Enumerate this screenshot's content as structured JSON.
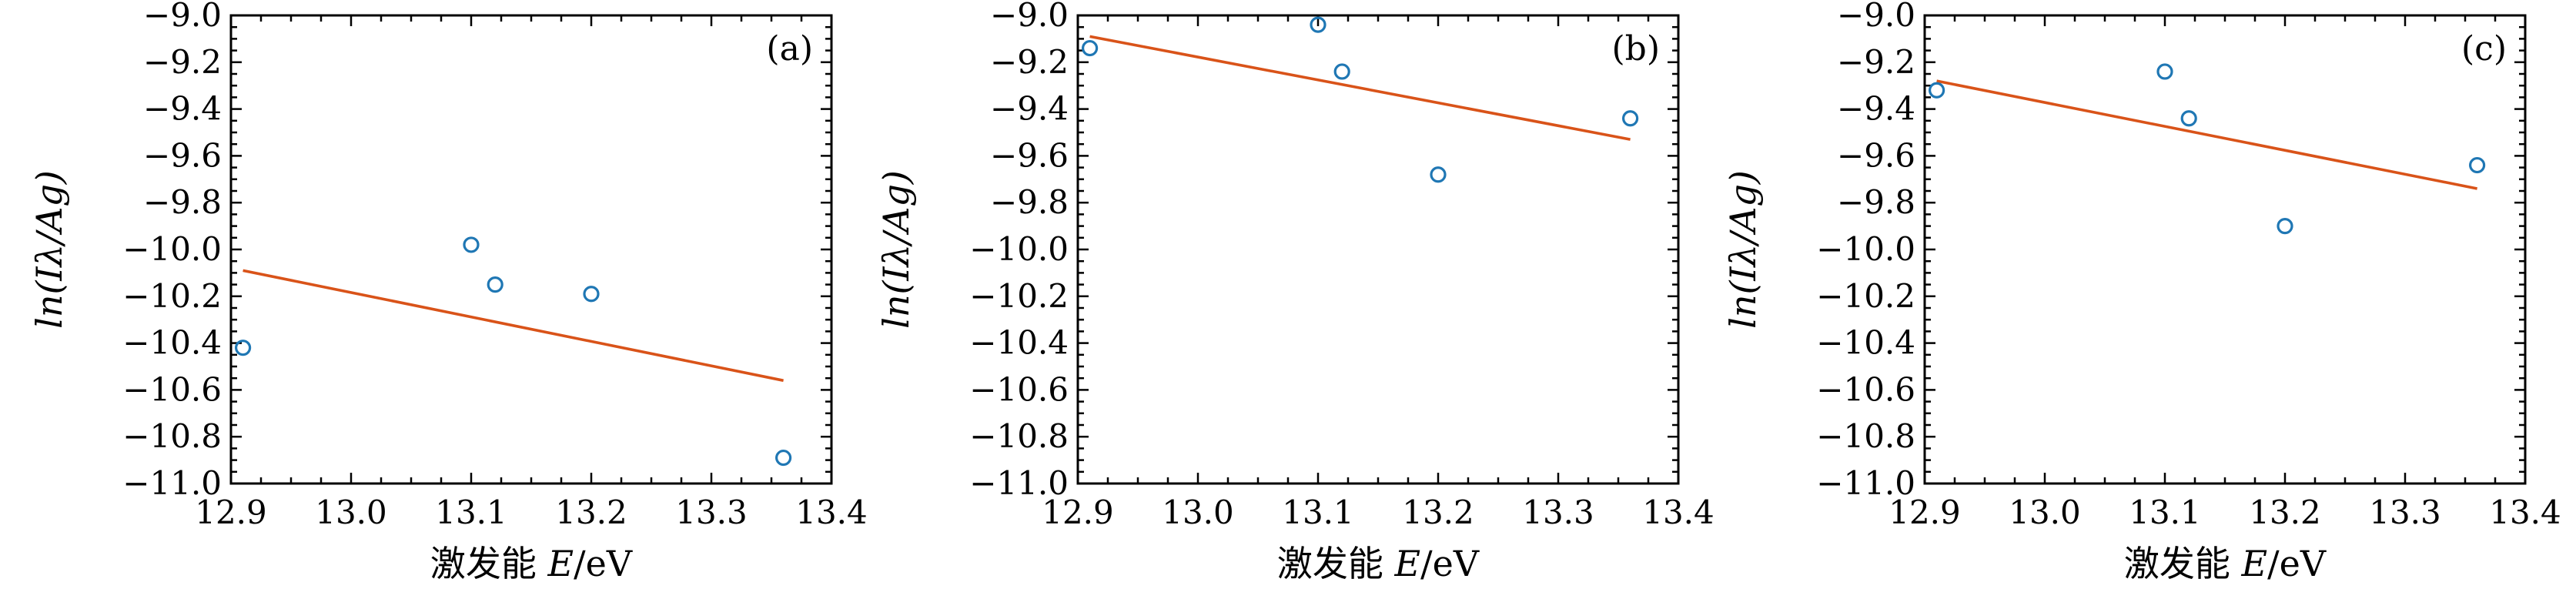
{
  "colors": {
    "marker": "#1f77b4",
    "fit_line": "#d95319"
  },
  "chart_data": [
    {
      "type": "scatter",
      "panel_label": "(a)",
      "xlabel_cn": "激发能",
      "xlabel_var": "E",
      "xlabel_unit": "/eV",
      "ylabel": "ln(Iλ/Ag)",
      "xlim": [
        12.9,
        13.4
      ],
      "ylim": [
        -11.0,
        -9.0
      ],
      "xticks": [
        "12.9",
        "13.0",
        "13.1",
        "13.2",
        "13.3",
        "13.4"
      ],
      "yticks": [
        "−9.0",
        "−9.2",
        "−9.4",
        "−9.6",
        "−9.8",
        "−10.0",
        "−10.2",
        "−10.4",
        "−10.6",
        "−10.8",
        "−11.0"
      ],
      "points": {
        "x": [
          12.91,
          13.1,
          13.12,
          13.2,
          13.36
        ],
        "y": [
          -10.42,
          -9.98,
          -10.15,
          -10.19,
          -10.89
        ]
      },
      "fit": {
        "x": [
          12.91,
          13.36
        ],
        "y": [
          -10.09,
          -10.56
        ]
      }
    },
    {
      "type": "scatter",
      "panel_label": "(b)",
      "xlabel_cn": "激发能",
      "xlabel_var": "E",
      "xlabel_unit": "/eV",
      "ylabel": "ln(Iλ/Ag)",
      "xlim": [
        12.9,
        13.4
      ],
      "ylim": [
        -11.0,
        -9.0
      ],
      "xticks": [
        "12.9",
        "13.0",
        "13.1",
        "13.2",
        "13.3",
        "13.4"
      ],
      "yticks": [
        "−9.0",
        "−9.2",
        "−9.4",
        "−9.6",
        "−9.8",
        "−10.0",
        "−10.2",
        "−10.4",
        "−10.6",
        "−10.8",
        "−11.0"
      ],
      "points": {
        "x": [
          12.91,
          13.1,
          13.12,
          13.2,
          13.36
        ],
        "y": [
          -9.14,
          -9.04,
          -9.24,
          -9.68,
          -9.44
        ]
      },
      "fit": {
        "x": [
          12.91,
          13.36
        ],
        "y": [
          -9.09,
          -9.53
        ]
      }
    },
    {
      "type": "scatter",
      "panel_label": "(c)",
      "xlabel_cn": "激发能",
      "xlabel_var": "E",
      "xlabel_unit": "/eV",
      "ylabel": "ln(Iλ/Ag)",
      "xlim": [
        12.9,
        13.4
      ],
      "ylim": [
        -11.0,
        -9.0
      ],
      "xticks": [
        "12.9",
        "13.0",
        "13.1",
        "13.2",
        "13.3",
        "13.4"
      ],
      "yticks": [
        "−9.0",
        "−9.2",
        "−9.4",
        "−9.6",
        "−9.8",
        "−10.0",
        "−10.2",
        "−10.4",
        "−10.6",
        "−10.8",
        "−11.0"
      ],
      "points": {
        "x": [
          12.91,
          13.1,
          13.12,
          13.2,
          13.36
        ],
        "y": [
          -9.32,
          -9.24,
          -9.44,
          -9.9,
          -9.64
        ]
      },
      "fit": {
        "x": [
          12.91,
          13.36
        ],
        "y": [
          -9.28,
          -9.74
        ]
      }
    }
  ]
}
